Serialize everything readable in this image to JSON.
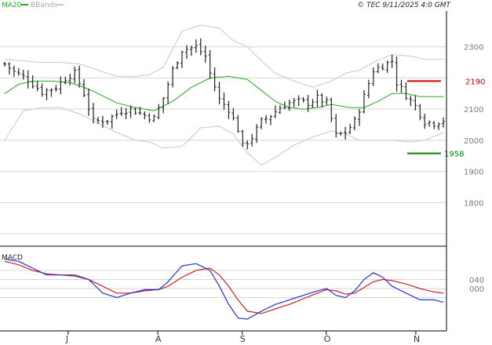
{
  "stamp": "© TEC 9/11/2025 4:0 GMT",
  "colors": {
    "price": "#222222",
    "ma": "#22aa22",
    "bands": "#c8c8c8",
    "grid": "#d6d6d6",
    "macd": "#2233cc",
    "signal": "#cc2222",
    "resistance": "#cc0000",
    "support": "#008800"
  },
  "chart_data": [
    {
      "type": "line",
      "panel": "price",
      "legend": [
        "MA20",
        "BBands"
      ],
      "y_ticks": [
        "2300",
        "2100",
        "2000",
        "1900",
        "1800"
      ],
      "y_tick_values": [
        2300,
        2100,
        2000,
        1900,
        1800
      ],
      "ylim": [
        1660,
        2415
      ],
      "x_months": [
        "J",
        "A",
        "S",
        "O",
        "N"
      ],
      "x_month_index": [
        13.6,
        32.8,
        50.9,
        68.9,
        88.1
      ],
      "n_bars": 95,
      "close_trend": [
        [
          0,
          2245
        ],
        [
          2,
          2220
        ],
        [
          5,
          2195
        ],
        [
          8,
          2155
        ],
        [
          11,
          2170
        ],
        [
          13,
          2200
        ],
        [
          15,
          2215
        ],
        [
          17,
          2150
        ],
        [
          19,
          2060
        ],
        [
          22,
          2065
        ],
        [
          25,
          2095
        ],
        [
          27,
          2100
        ],
        [
          30,
          2080
        ],
        [
          32,
          2070
        ],
        [
          34,
          2135
        ],
        [
          36,
          2225
        ],
        [
          38,
          2290
        ],
        [
          41,
          2300
        ],
        [
          43,
          2270
        ],
        [
          44,
          2215
        ],
        [
          46,
          2130
        ],
        [
          48,
          2100
        ],
        [
          50,
          2035
        ],
        [
          51,
          1980
        ],
        [
          53,
          2010
        ],
        [
          55,
          2060
        ],
        [
          57,
          2080
        ],
        [
          59,
          2105
        ],
        [
          61,
          2120
        ],
        [
          63,
          2125
        ],
        [
          65,
          2120
        ],
        [
          67,
          2135
        ],
        [
          69,
          2120
        ],
        [
          71,
          2015
        ],
        [
          73,
          2025
        ],
        [
          75,
          2060
        ],
        [
          77,
          2140
        ],
        [
          79,
          2225
        ],
        [
          81,
          2240
        ],
        [
          83,
          2255
        ],
        [
          84,
          2185
        ],
        [
          86,
          2145
        ],
        [
          88,
          2110
        ],
        [
          90,
          2060
        ],
        [
          92,
          2055
        ],
        [
          94,
          2065
        ]
      ],
      "ma20_trend": [
        [
          0,
          2150
        ],
        [
          3,
          2180
        ],
        [
          6,
          2190
        ],
        [
          10,
          2190
        ],
        [
          14,
          2185
        ],
        [
          17,
          2170
        ],
        [
          20,
          2150
        ],
        [
          24,
          2120
        ],
        [
          28,
          2105
        ],
        [
          32,
          2095
        ],
        [
          36,
          2125
        ],
        [
          40,
          2170
        ],
        [
          44,
          2200
        ],
        [
          48,
          2205
        ],
        [
          52,
          2195
        ],
        [
          55,
          2160
        ],
        [
          58,
          2125
        ],
        [
          61,
          2105
        ],
        [
          64,
          2100
        ],
        [
          67,
          2105
        ],
        [
          70,
          2115
        ],
        [
          74,
          2105
        ],
        [
          77,
          2105
        ],
        [
          80,
          2125
        ],
        [
          83,
          2150
        ],
        [
          86,
          2150
        ],
        [
          89,
          2140
        ],
        [
          92,
          2140
        ],
        [
          94,
          2140
        ]
      ],
      "upper_band_trend": [
        [
          0,
          2260
        ],
        [
          4,
          2255
        ],
        [
          8,
          2250
        ],
        [
          12,
          2250
        ],
        [
          16,
          2245
        ],
        [
          20,
          2225
        ],
        [
          24,
          2205
        ],
        [
          28,
          2205
        ],
        [
          31,
          2210
        ],
        [
          34,
          2235
        ],
        [
          38,
          2350
        ],
        [
          42,
          2370
        ],
        [
          46,
          2360
        ],
        [
          49,
          2320
        ],
        [
          52,
          2300
        ],
        [
          55,
          2255
        ],
        [
          58,
          2215
        ],
        [
          62,
          2190
        ],
        [
          66,
          2170
        ],
        [
          70,
          2190
        ],
        [
          73,
          2215
        ],
        [
          76,
          2225
        ],
        [
          79,
          2250
        ],
        [
          83,
          2275
        ],
        [
          87,
          2270
        ],
        [
          90,
          2260
        ],
        [
          94,
          2260
        ]
      ],
      "lower_band_trend": [
        [
          0,
          2000
        ],
        [
          4,
          2095
        ],
        [
          8,
          2105
        ],
        [
          12,
          2105
        ],
        [
          16,
          2085
        ],
        [
          20,
          2055
        ],
        [
          24,
          2025
        ],
        [
          28,
          2000
        ],
        [
          31,
          1995
        ],
        [
          34,
          1975
        ],
        [
          38,
          1980
        ],
        [
          42,
          2040
        ],
        [
          46,
          2045
        ],
        [
          49,
          2020
        ],
        [
          52,
          1960
        ],
        [
          55,
          1920
        ],
        [
          58,
          1945
        ],
        [
          62,
          1985
        ],
        [
          66,
          2010
        ],
        [
          70,
          2030
        ],
        [
          73,
          2020
        ],
        [
          76,
          2000
        ],
        [
          79,
          2000
        ],
        [
          83,
          2000
        ],
        [
          87,
          1995
        ],
        [
          90,
          2000
        ],
        [
          94,
          2025
        ]
      ],
      "resistance": {
        "value": 2190,
        "label": "2190"
      },
      "support": {
        "value": 1958,
        "label": "1958"
      }
    },
    {
      "type": "line",
      "panel": "macd",
      "legend": [
        "MACD"
      ],
      "y_ticks": [
        "040",
        "000"
      ],
      "y_tick_values": [
        40,
        0
      ],
      "ylim": [
        -180,
        180
      ],
      "macd_trend": [
        [
          0,
          130
        ],
        [
          3,
          120
        ],
        [
          6,
          90
        ],
        [
          9,
          60
        ],
        [
          12,
          60
        ],
        [
          15,
          60
        ],
        [
          18,
          40
        ],
        [
          21,
          -20
        ],
        [
          24,
          -40
        ],
        [
          27,
          -20
        ],
        [
          30,
          -5
        ],
        [
          33,
          -5
        ],
        [
          35,
          30
        ],
        [
          38,
          100
        ],
        [
          41,
          110
        ],
        [
          44,
          80
        ],
        [
          46,
          10
        ],
        [
          48,
          -70
        ],
        [
          50,
          -130
        ],
        [
          52,
          -135
        ],
        [
          55,
          -100
        ],
        [
          58,
          -70
        ],
        [
          61,
          -50
        ],
        [
          64,
          -30
        ],
        [
          67,
          -10
        ],
        [
          69,
          0
        ],
        [
          71,
          -30
        ],
        [
          73,
          -40
        ],
        [
          75,
          -10
        ],
        [
          77,
          40
        ],
        [
          79,
          70
        ],
        [
          81,
          50
        ],
        [
          83,
          10
        ],
        [
          86,
          -20
        ],
        [
          89,
          -50
        ],
        [
          92,
          -50
        ],
        [
          94,
          -60
        ]
      ],
      "signal_trend": [
        [
          0,
          120
        ],
        [
          3,
          105
        ],
        [
          6,
          80
        ],
        [
          9,
          65
        ],
        [
          12,
          60
        ],
        [
          15,
          55
        ],
        [
          18,
          40
        ],
        [
          21,
          10
        ],
        [
          24,
          -20
        ],
        [
          27,
          -20
        ],
        [
          30,
          -10
        ],
        [
          33,
          -5
        ],
        [
          35,
          10
        ],
        [
          38,
          50
        ],
        [
          41,
          80
        ],
        [
          44,
          90
        ],
        [
          46,
          60
        ],
        [
          48,
          10
        ],
        [
          50,
          -50
        ],
        [
          52,
          -100
        ],
        [
          55,
          -110
        ],
        [
          58,
          -90
        ],
        [
          61,
          -70
        ],
        [
          64,
          -45
        ],
        [
          67,
          -20
        ],
        [
          69,
          -5
        ],
        [
          71,
          -10
        ],
        [
          73,
          -25
        ],
        [
          75,
          -20
        ],
        [
          77,
          5
        ],
        [
          79,
          30
        ],
        [
          81,
          40
        ],
        [
          83,
          35
        ],
        [
          86,
          20
        ],
        [
          89,
          0
        ],
        [
          92,
          -15
        ],
        [
          94,
          -20
        ]
      ]
    }
  ]
}
